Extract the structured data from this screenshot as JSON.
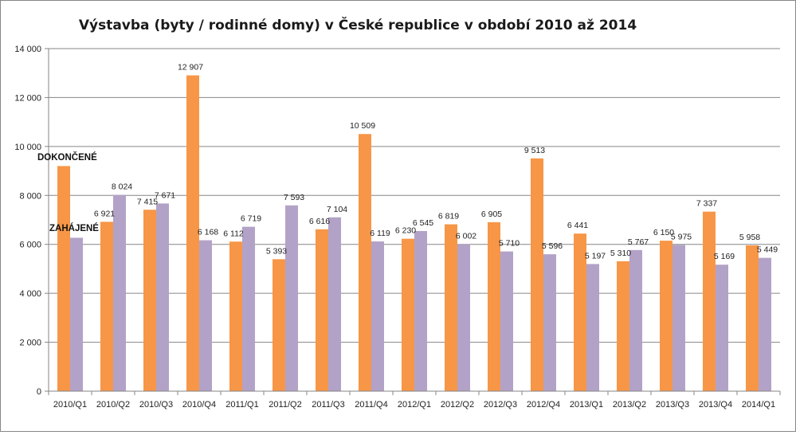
{
  "chart_data": {
    "type": "bar",
    "title": "Výstavba (byty / rodinné domy) v České republice v období 2010 až 2014",
    "xlabel": "",
    "ylabel": "",
    "ylim": [
      0,
      14000
    ],
    "yticks": [
      "0",
      "2 000",
      "4 000",
      "6 000",
      "8 000",
      "10 000",
      "12 000",
      "14 000"
    ],
    "grid": true,
    "categories": [
      "2010/Q1",
      "2010/Q2",
      "2010/Q3",
      "2010/Q4",
      "2011/Q1",
      "2011/Q2",
      "2011/Q3",
      "2011/Q4",
      "2012/Q1",
      "2012/Q2",
      "2012/Q3",
      "2012/Q4",
      "2013/Q1",
      "2013/Q2",
      "2013/Q3",
      "2013/Q4",
      "2014/Q1"
    ],
    "series": [
      {
        "name": "DOKONČENÉ",
        "color": "#f79646",
        "values": [
          9200,
          6921,
          7415,
          12907,
          6112,
          5393,
          6616,
          10509,
          6230,
          6819,
          6905,
          9513,
          6441,
          5310,
          6150,
          7337,
          5958
        ],
        "labels": [
          "",
          "6 921",
          "7 415",
          "12 907",
          "6 112",
          "5 393",
          "6 616",
          "10 509",
          "6 230",
          "6 819",
          "6 905",
          "9 513",
          "6 441",
          "5 310",
          "6 150",
          "7 337",
          "5 958"
        ]
      },
      {
        "name": "ZAHÁJENÉ",
        "color": "#b3a2c7",
        "values": [
          6270,
          8024,
          7671,
          6168,
          6719,
          7593,
          7104,
          6119,
          6545,
          6002,
          5710,
          5596,
          5197,
          5767,
          5975,
          5169,
          5449
        ],
        "labels": [
          "",
          "8 024",
          "7 671",
          "6 168",
          "6 719",
          "7 593",
          "7 104",
          "6 119",
          "6 545",
          "6 002",
          "5 710",
          "5 596",
          "5 197",
          "5 767",
          "5 975",
          "5 169",
          "5 449"
        ]
      }
    ]
  }
}
